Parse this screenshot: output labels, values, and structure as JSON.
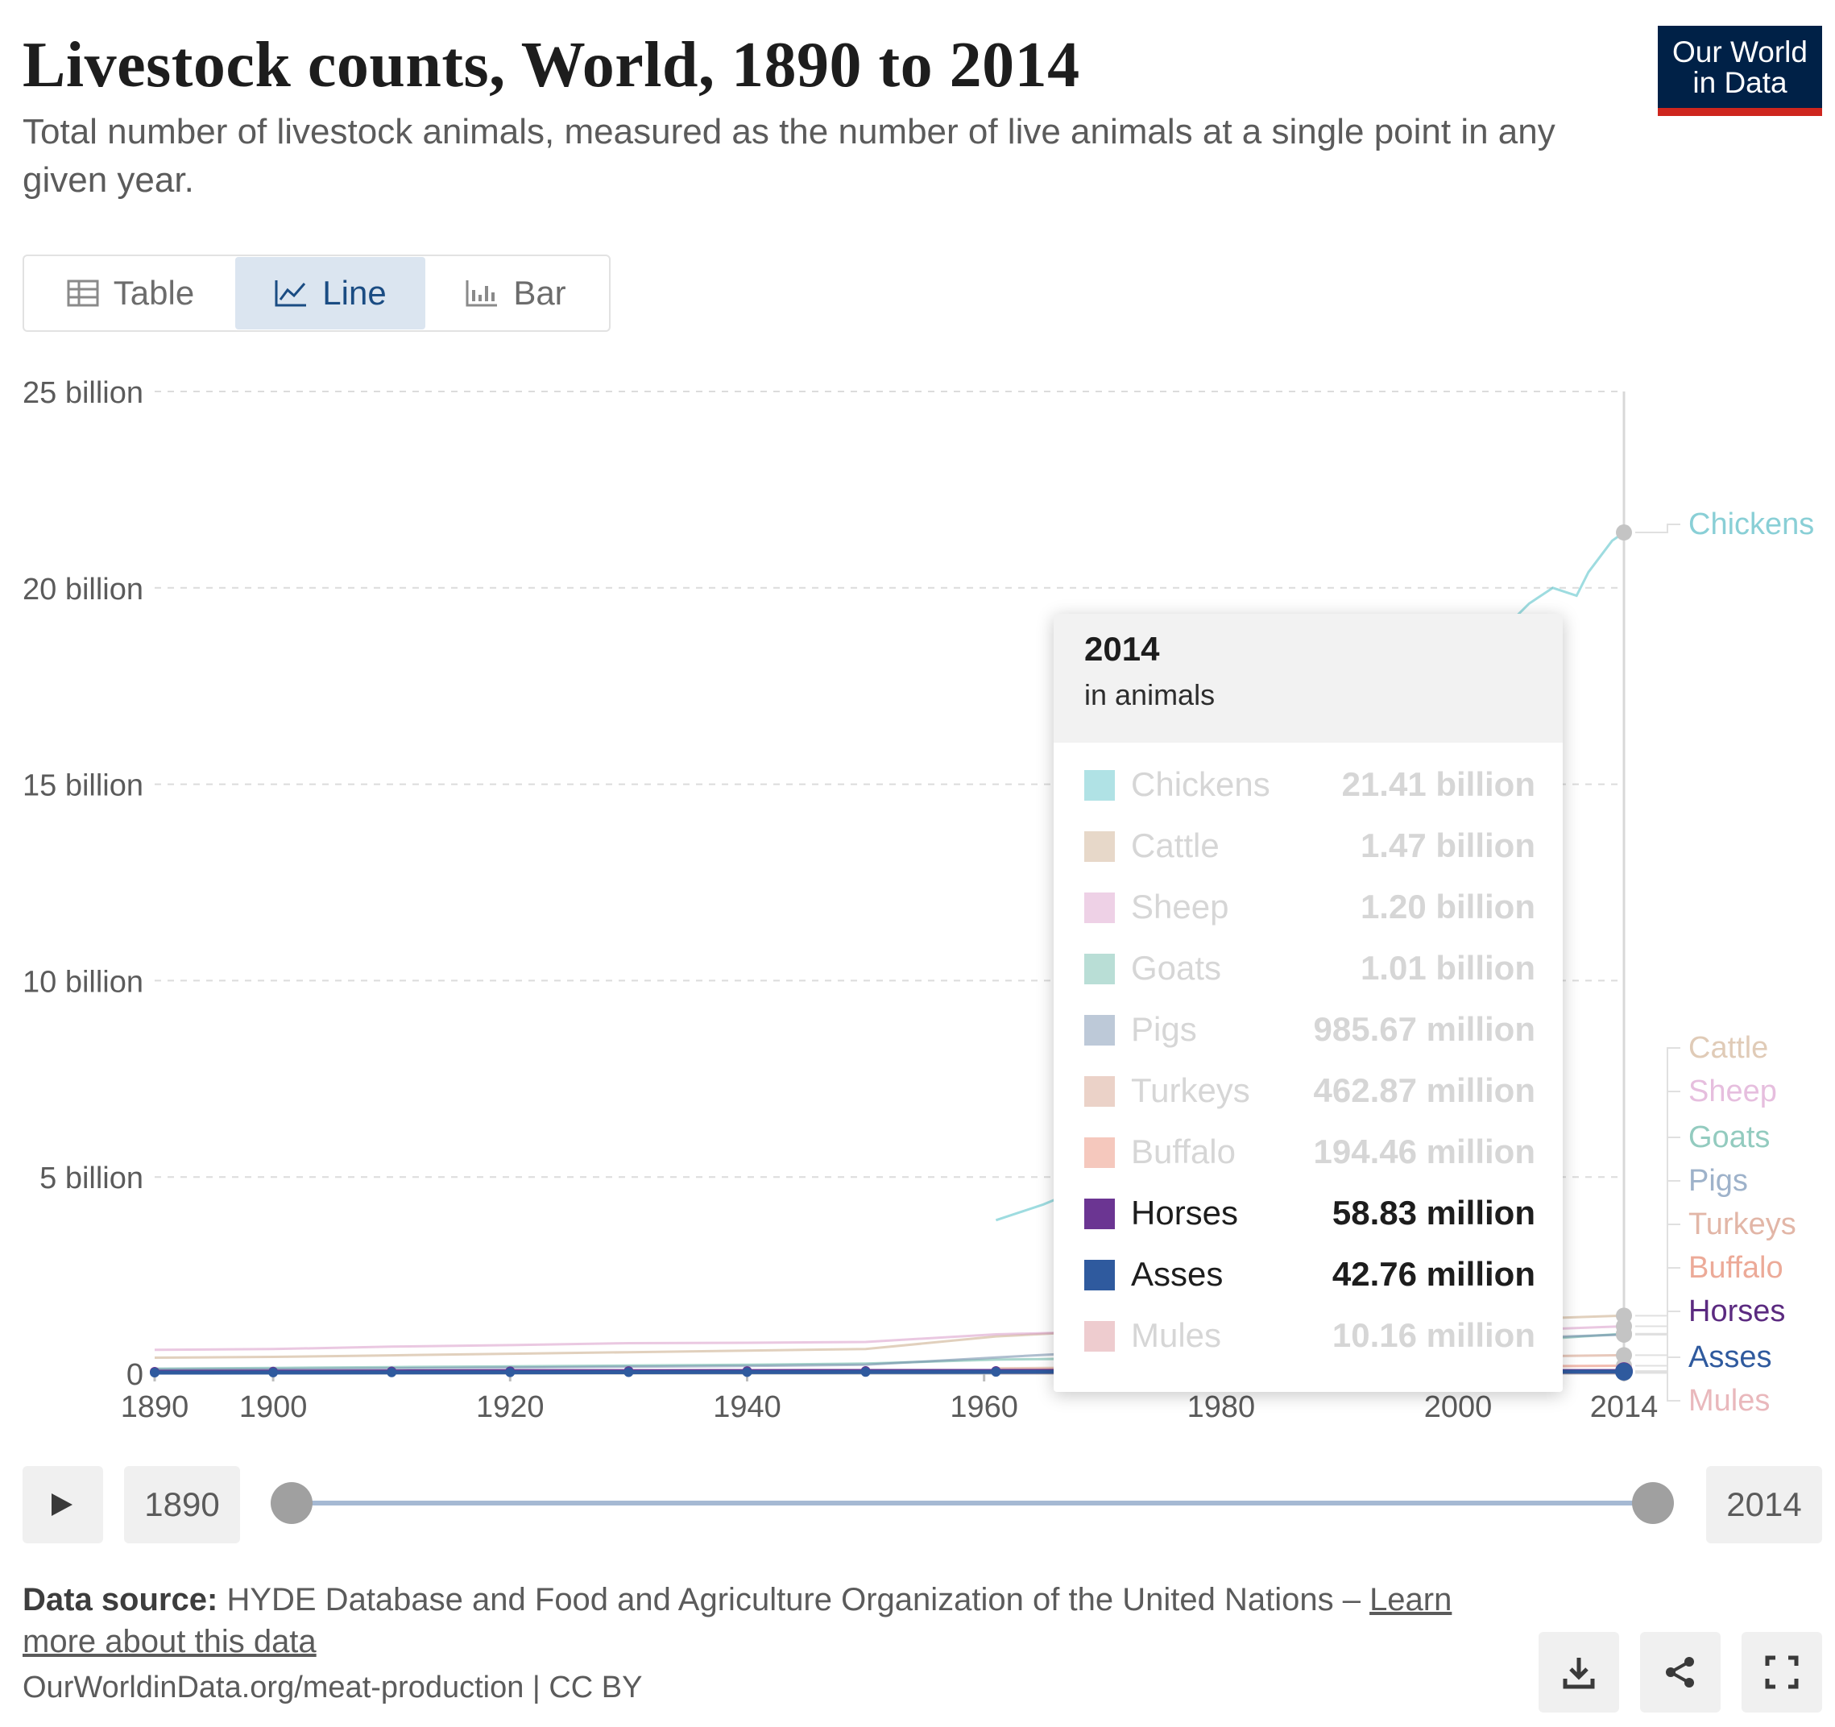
{
  "header": {
    "title": "Livestock counts, World, 1890 to 2014",
    "subtitle": "Total number of livestock animals, measured as the number of live animals at a single point in any given year.",
    "logo_line1": "Our World",
    "logo_line2": "in Data"
  },
  "tabs": [
    {
      "label": "Table",
      "icon": "table-icon"
    },
    {
      "label": "Line",
      "icon": "line-chart-icon",
      "active": true
    },
    {
      "label": "Bar",
      "icon": "bar-chart-icon"
    }
  ],
  "chart_data": {
    "type": "line",
    "title": "Livestock counts, World, 1890 to 2014",
    "xlabel": "",
    "ylabel": "",
    "xlim": [
      1890,
      2014
    ],
    "ylim": [
      0,
      25000000000
    ],
    "y_ticks": [
      {
        "value": 0,
        "label": "0"
      },
      {
        "value": 5000000000,
        "label": "5 billion"
      },
      {
        "value": 10000000000,
        "label": "10 billion"
      },
      {
        "value": 15000000000,
        "label": "15 billion"
      },
      {
        "value": 20000000000,
        "label": "20 billion"
      },
      {
        "value": 25000000000,
        "label": "25 billion"
      }
    ],
    "x_ticks": [
      {
        "value": 1890,
        "label": "1890"
      },
      {
        "value": 1900,
        "label": "1900"
      },
      {
        "value": 1920,
        "label": "1920"
      },
      {
        "value": 1940,
        "label": "1940"
      },
      {
        "value": 1960,
        "label": "1960"
      },
      {
        "value": 1980,
        "label": "1980"
      },
      {
        "value": 2000,
        "label": "2000"
      },
      {
        "value": 2014,
        "label": "2014"
      }
    ],
    "grid": "horizontal dashed",
    "legend": "right, labels at line ends",
    "series": [
      {
        "name": "Chickens",
        "color": "#4fbfc6",
        "label_color": "#6cc4cc",
        "x": [
          1961,
          1963,
          1965,
          1967,
          1969,
          1970,
          2005,
          2006,
          2008,
          2010,
          2011,
          2012,
          2013,
          2014
        ],
        "values": [
          3900000000,
          4100000000,
          4300000000,
          4550000000,
          4800000000,
          5000000000,
          19300000000,
          19600000000,
          20000000000,
          19800000000,
          20400000000,
          20800000000,
          21200000000,
          21410000000
        ]
      },
      {
        "name": "Cattle",
        "color": "#c9a987",
        "label_color": "#d9bfa6",
        "x": [
          1890,
          1900,
          1910,
          1920,
          1930,
          1940,
          1950,
          1961,
          1970,
          2005,
          2014
        ],
        "values": [
          400000000,
          420000000,
          460000000,
          500000000,
          540000000,
          580000000,
          620000000,
          942000000,
          1080000000,
          1380000000,
          1470000000
        ]
      },
      {
        "name": "Sheep",
        "color": "#d99ac8",
        "label_color": "#e0aed6",
        "x": [
          1890,
          1900,
          1910,
          1920,
          1930,
          1940,
          1950,
          1961,
          1970,
          2005,
          2014
        ],
        "values": [
          600000000,
          620000000,
          680000000,
          720000000,
          770000000,
          780000000,
          800000000,
          994000000,
          1060000000,
          1100000000,
          1200000000
        ]
      },
      {
        "name": "Goats",
        "color": "#64b5a4",
        "label_color": "#79bfb0",
        "x": [
          1890,
          1900,
          1910,
          1920,
          1930,
          1940,
          1950,
          1961,
          1970,
          2005,
          2014
        ],
        "values": [
          120000000,
          140000000,
          160000000,
          180000000,
          200000000,
          220000000,
          250000000,
          350000000,
          380000000,
          830000000,
          1010000000
        ]
      },
      {
        "name": "Pigs",
        "color": "#6d88a8",
        "label_color": "#86a0bd",
        "x": [
          1890,
          1900,
          1910,
          1920,
          1930,
          1940,
          1950,
          1961,
          1970,
          2005,
          2014
        ],
        "values": [
          100000000,
          110000000,
          130000000,
          150000000,
          170000000,
          190000000,
          220000000,
          406000000,
          550000000,
          900000000,
          985670000
        ]
      },
      {
        "name": "Turkeys",
        "color": "#d39b84",
        "label_color": "#dca592",
        "x": [
          1961,
          1970,
          2005,
          2014
        ],
        "values": [
          130000000,
          150000000,
          430000000,
          462870000
        ]
      },
      {
        "name": "Buffalo",
        "color": "#e8846d",
        "label_color": "#e8967f",
        "x": [
          1961,
          1970,
          2005,
          2014
        ],
        "values": [
          88000000,
          105000000,
          180000000,
          194460000
        ]
      },
      {
        "name": "Horses",
        "color": "#6b3592",
        "label_color": "#5b2a80",
        "x": [
          1890,
          1900,
          1910,
          1920,
          1930,
          1940,
          1950,
          1961,
          1970,
          2005,
          2014
        ],
        "values": [
          40000000,
          45000000,
          50000000,
          55000000,
          58000000,
          60000000,
          62000000,
          62000000,
          61000000,
          58000000,
          58830000
        ]
      },
      {
        "name": "Asses",
        "color": "#2f5a9e",
        "label_color": "#2f5a9e",
        "x": [
          1890,
          1900,
          1910,
          1920,
          1930,
          1940,
          1950,
          1961,
          1970,
          2005,
          2014
        ],
        "values": [
          20000000,
          22000000,
          25000000,
          28000000,
          30000000,
          32000000,
          35000000,
          38000000,
          40000000,
          42000000,
          42760000
        ]
      },
      {
        "name": "Mules",
        "color": "#d98f95",
        "label_color": "#e4a7ac",
        "x": [
          1961,
          1970,
          2005,
          2014
        ],
        "values": [
          9000000,
          10000000,
          10500000,
          10160000
        ]
      }
    ],
    "highlighted": [
      "Horses",
      "Asses"
    ]
  },
  "tooltip": {
    "year": "2014",
    "unit": "in animals",
    "rows": [
      {
        "name": "Chickens",
        "value": "21.41 billion",
        "color": "#4fbfc6",
        "dim": true
      },
      {
        "name": "Cattle",
        "value": "1.47 billion",
        "color": "#c9a987",
        "dim": true
      },
      {
        "name": "Sheep",
        "value": "1.20 billion",
        "color": "#d99ac8",
        "dim": true
      },
      {
        "name": "Goats",
        "value": "1.01 billion",
        "color": "#64b5a4",
        "dim": true
      },
      {
        "name": "Pigs",
        "value": "985.67 million",
        "color": "#6d88a8",
        "dim": true
      },
      {
        "name": "Turkeys",
        "value": "462.87 million",
        "color": "#d39b84",
        "dim": true
      },
      {
        "name": "Buffalo",
        "value": "194.46 million",
        "color": "#e8846d",
        "dim": true
      },
      {
        "name": "Horses",
        "value": "58.83 million",
        "color": "#6b3592",
        "dim": false
      },
      {
        "name": "Asses",
        "value": "42.76 million",
        "color": "#2f5a9e",
        "dim": false
      },
      {
        "name": "Mules",
        "value": "10.16 million",
        "color": "#d98f95",
        "dim": true
      }
    ]
  },
  "timeline": {
    "start_year": "1890",
    "end_year": "2014",
    "start_fraction": 0,
    "end_fraction": 1
  },
  "footer": {
    "source_label": "Data source:",
    "source_text": "HYDE Database and Food and Agriculture Organization of the United Nations –",
    "learn_more": "Learn more about this data",
    "credit": "OurWorldinData.org/meat-production | CC BY"
  },
  "buttons": {
    "play": "play-icon",
    "download": "download-icon",
    "share": "share-icon",
    "fullscreen": "fullscreen-icon"
  }
}
